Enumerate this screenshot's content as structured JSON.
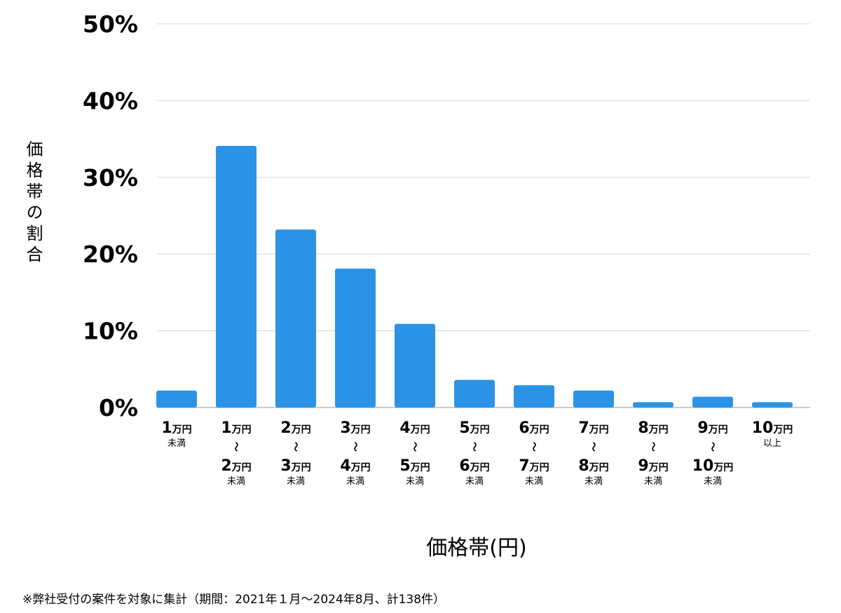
{
  "chart_data": {
    "type": "bar",
    "xlabel": "価格帯(円)",
    "ylabel": "価格帯の割合",
    "ylim": [
      0,
      50
    ],
    "yticks": [
      "0%",
      "10%",
      "20%",
      "30%",
      "40%",
      "50%"
    ],
    "ytick_values": [
      0,
      10,
      20,
      30,
      40,
      50
    ],
    "grid": true,
    "bar_color": "#2b93e6",
    "categories": [
      {
        "from": "1",
        "unit": "万円",
        "suffix": "未満"
      },
      {
        "from": "1",
        "unit": "万円",
        "sep": "～",
        "to": "2",
        "suffix": "未満"
      },
      {
        "from": "2",
        "unit": "万円",
        "sep": "～",
        "to": "3",
        "suffix": "未満"
      },
      {
        "from": "3",
        "unit": "万円",
        "sep": "～",
        "to": "4",
        "suffix": "未満"
      },
      {
        "from": "4",
        "unit": "万円",
        "sep": "～",
        "to": "5",
        "suffix": "未満"
      },
      {
        "from": "5",
        "unit": "万円",
        "sep": "～",
        "to": "6",
        "suffix": "未満"
      },
      {
        "from": "6",
        "unit": "万円",
        "sep": "～",
        "to": "7",
        "suffix": "未満"
      },
      {
        "from": "7",
        "unit": "万円",
        "sep": "～",
        "to": "8",
        "suffix": "未満"
      },
      {
        "from": "8",
        "unit": "万円",
        "sep": "～",
        "to": "9",
        "suffix": "未満"
      },
      {
        "from": "9",
        "unit": "万円",
        "sep": "～",
        "to": "10",
        "suffix": "未満"
      },
      {
        "from": "10",
        "unit": "万円",
        "suffix": "以上"
      }
    ],
    "values": [
      2.2,
      34.1,
      23.2,
      18.1,
      10.9,
      3.6,
      2.9,
      2.2,
      0.7,
      1.4,
      0.7
    ]
  },
  "note": "※弊社受付の案件を対象に集計（期間：2021年１月～2024年8月、計138件）"
}
